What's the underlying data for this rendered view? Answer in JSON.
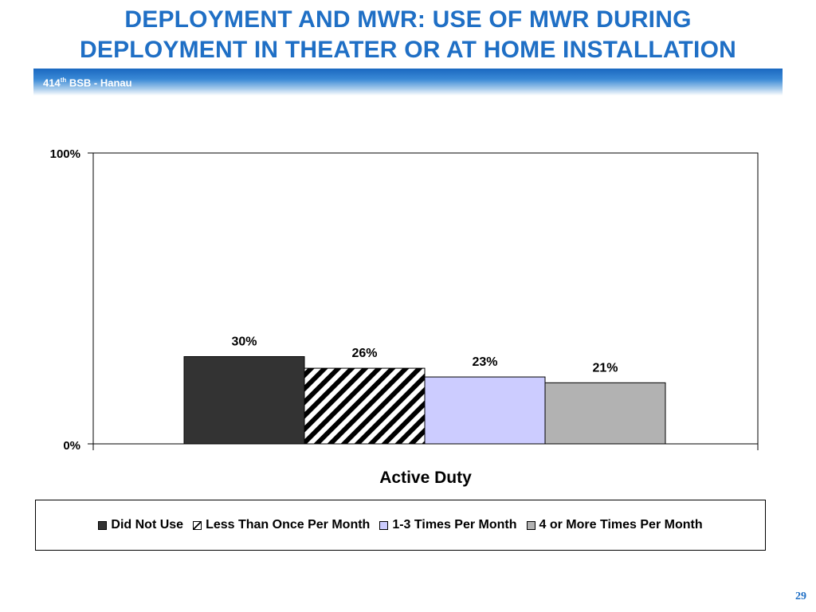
{
  "slide": {
    "title_line1": "DEPLOYMENT AND MWR: USE OF MWR DURING",
    "title_line2": "DEPLOYMENT IN THEATER OR AT HOME INSTALLATION",
    "subtitle_prefix": "414",
    "subtitle_sup": "th",
    "subtitle_suffix": " BSB - Hanau",
    "page_number": "29",
    "title_color": "#1f6fc5"
  },
  "chart_data": {
    "type": "bar",
    "title": "",
    "categories": [
      "Active Duty"
    ],
    "xlabel": "Active Duty",
    "ylabel": "",
    "ylim": [
      0,
      100
    ],
    "yticks": [
      "0%",
      "100%"
    ],
    "grid": false,
    "legend_position": "bottom",
    "series": [
      {
        "name": "Did Not Use",
        "values": [
          30
        ],
        "label": "30%",
        "color": "#333333",
        "pattern": "solid"
      },
      {
        "name": "Less Than Once Per Month",
        "values": [
          26
        ],
        "label": "26%",
        "color": "#ffffff",
        "pattern": "diagonal-hatch"
      },
      {
        "name": "1-3 Times Per Month",
        "values": [
          23
        ],
        "label": "23%",
        "color": "#ccccff",
        "pattern": "solid"
      },
      {
        "name": "4 or More Times Per Month",
        "values": [
          21
        ],
        "label": "21%",
        "color": "#b2b2b2",
        "pattern": "solid"
      }
    ]
  }
}
